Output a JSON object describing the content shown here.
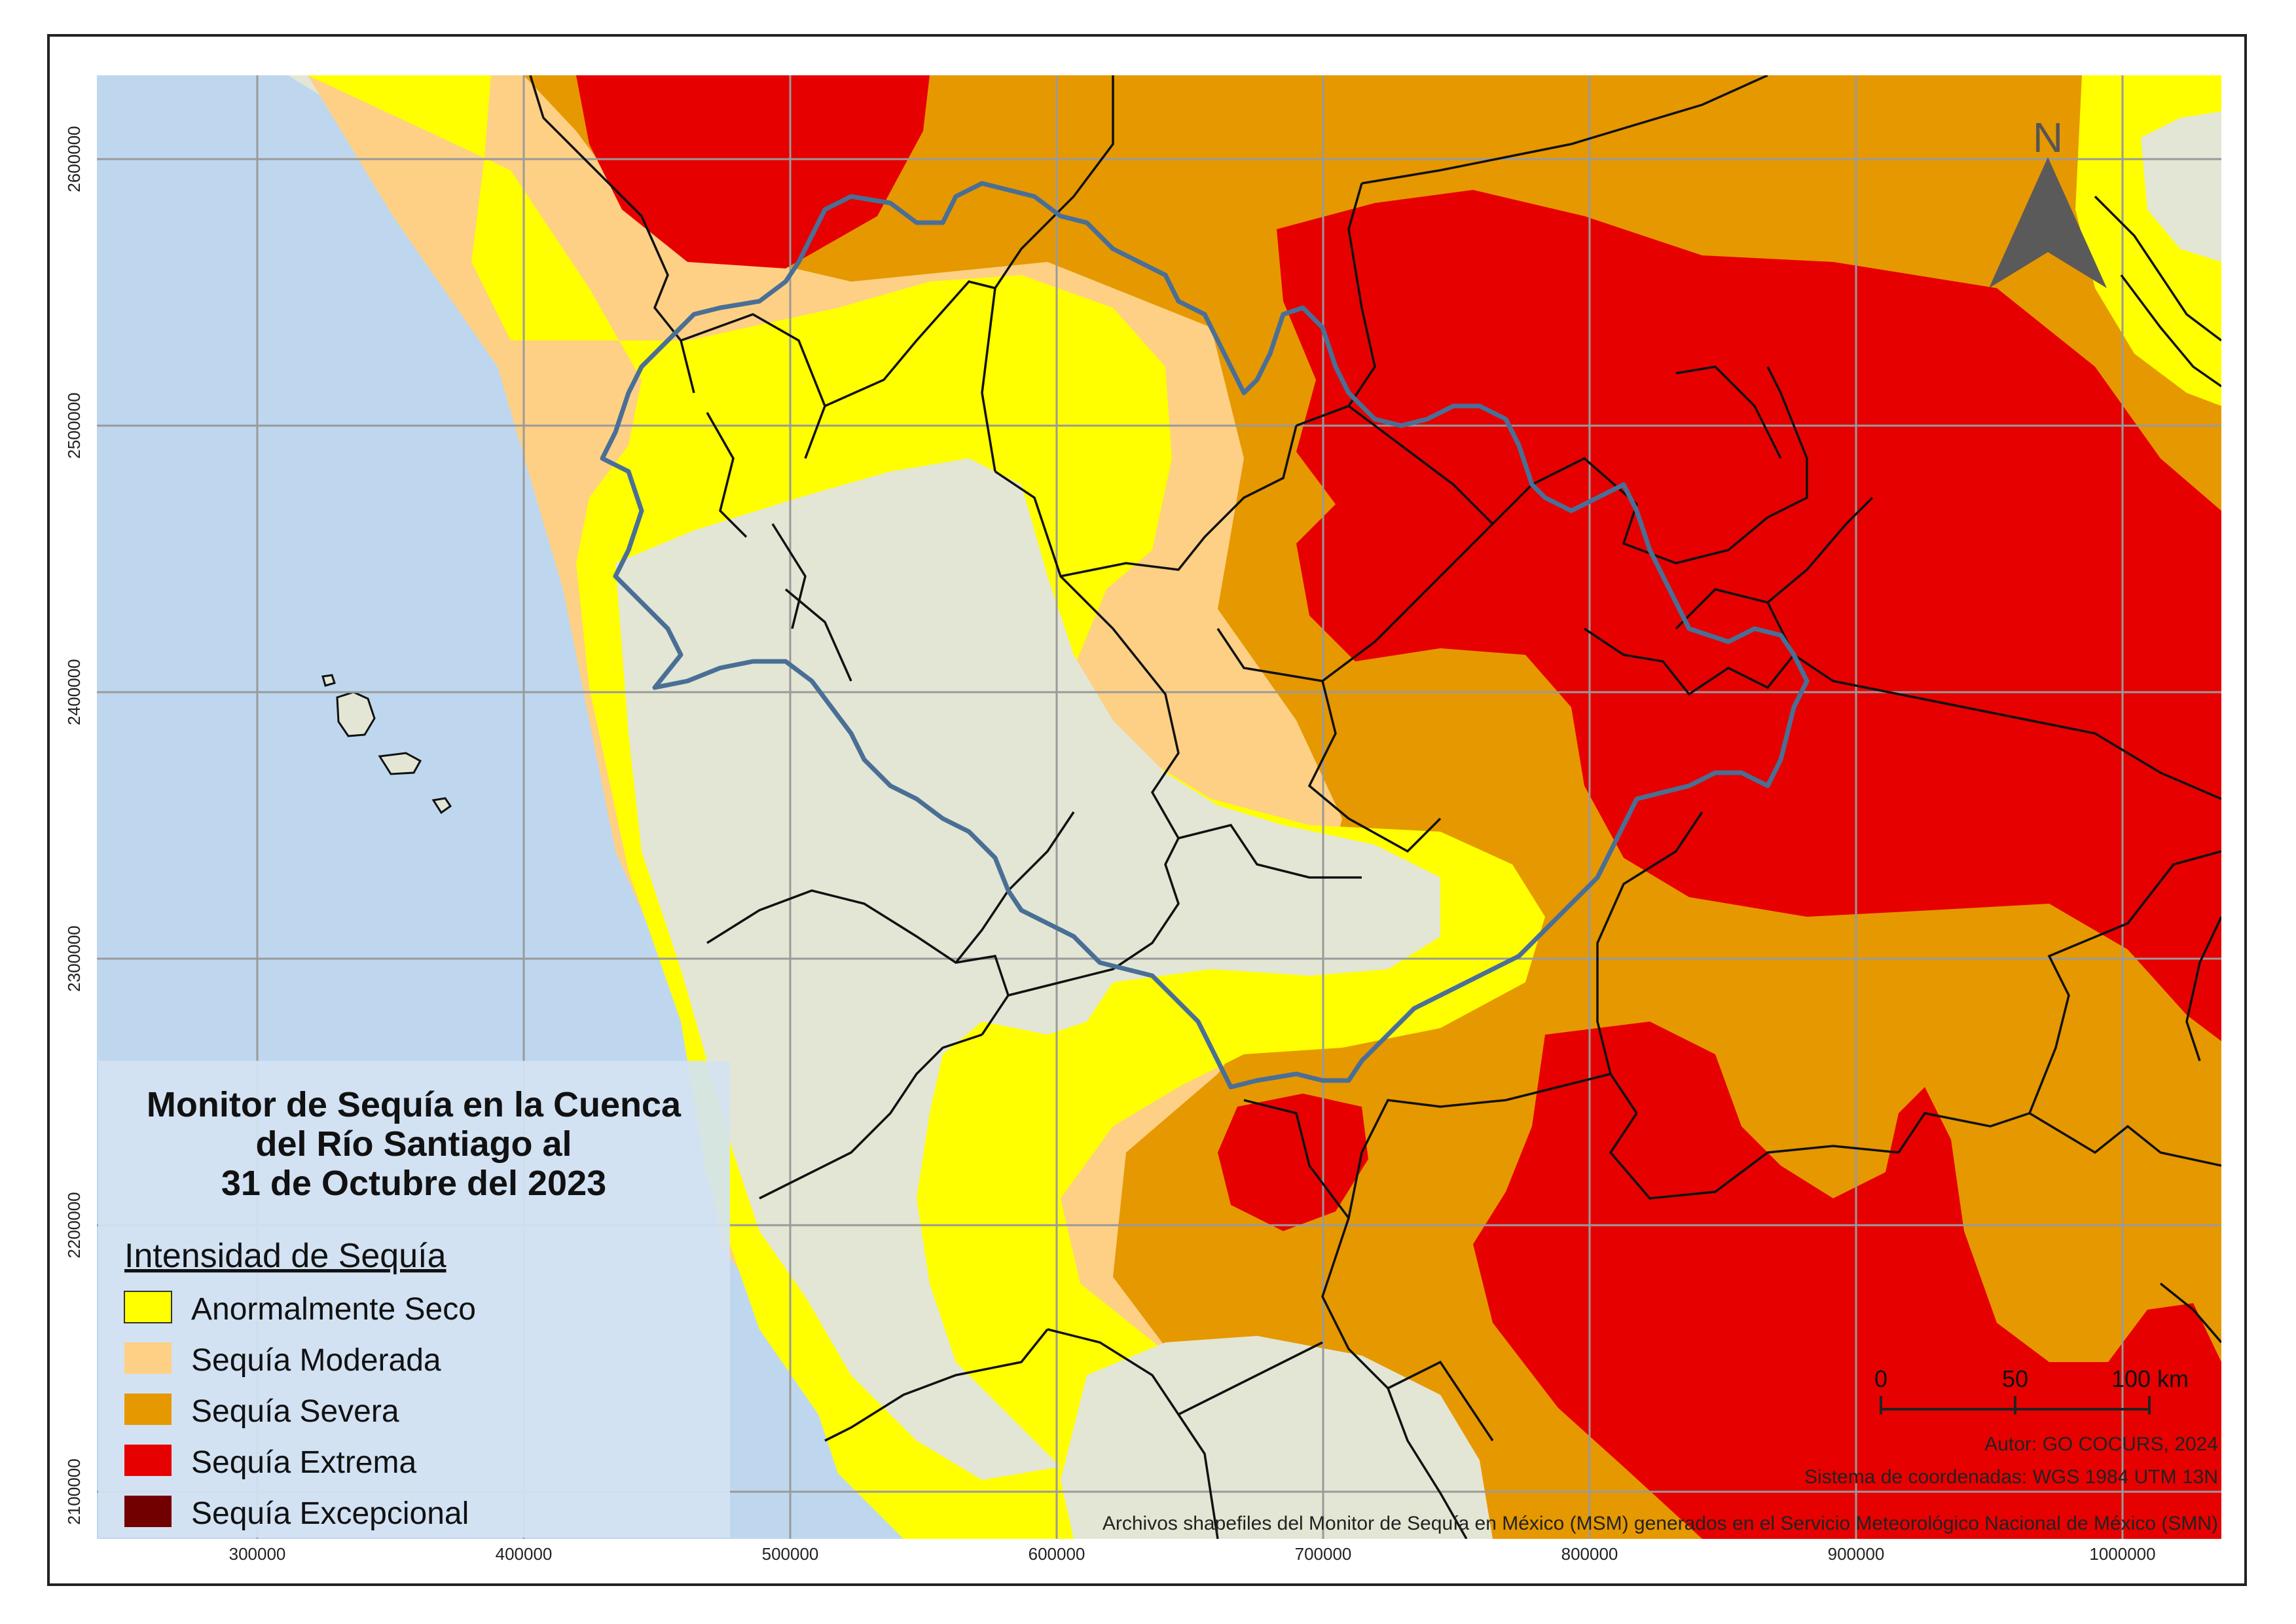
{
  "map": {
    "title_lines": [
      "Monitor de Sequía en la Cuenca",
      "del Río Santiago al",
      "31 de Octubre del 2023"
    ],
    "legend": {
      "title": "Intensidad de Sequía",
      "items": [
        {
          "label": "Anormalmente Seco",
          "color": "#ffff00"
        },
        {
          "label": "Sequía Moderada",
          "color": "#fdd085"
        },
        {
          "label": "Sequía Severa",
          "color": "#e69800"
        },
        {
          "label": "Sequía Extrema",
          "color": "#e60000"
        },
        {
          "label": "Sequía Excepcional",
          "color": "#730000"
        }
      ]
    },
    "y_ticks": [
      "2600000",
      "2500000",
      "2400000",
      "2300000",
      "2200000",
      "2100000"
    ],
    "x_ticks": [
      "300000",
      "400000",
      "500000",
      "600000",
      "700000",
      "800000",
      "900000",
      "1000000"
    ],
    "north_label": "N",
    "scale_bar": {
      "labels": [
        "0",
        "50",
        "100 km"
      ]
    },
    "credits": [
      "Autor: GO COCURS, 2024",
      "Sistema de coordenadas: WGS 1984 UTM 13N",
      "Archivos shapefiles del Monitor de Sequía en México (MSM) generados en el Servicio Meteorológico Nacional de México (SMN)"
    ],
    "colors": {
      "ocean": "#bed7ef",
      "land": "#e3e6d4",
      "basin_outline": "#4a6f96",
      "boundaries": "#111111",
      "legend_panel": "#d4e3f3",
      "grid": "#9a9a9a"
    }
  }
}
